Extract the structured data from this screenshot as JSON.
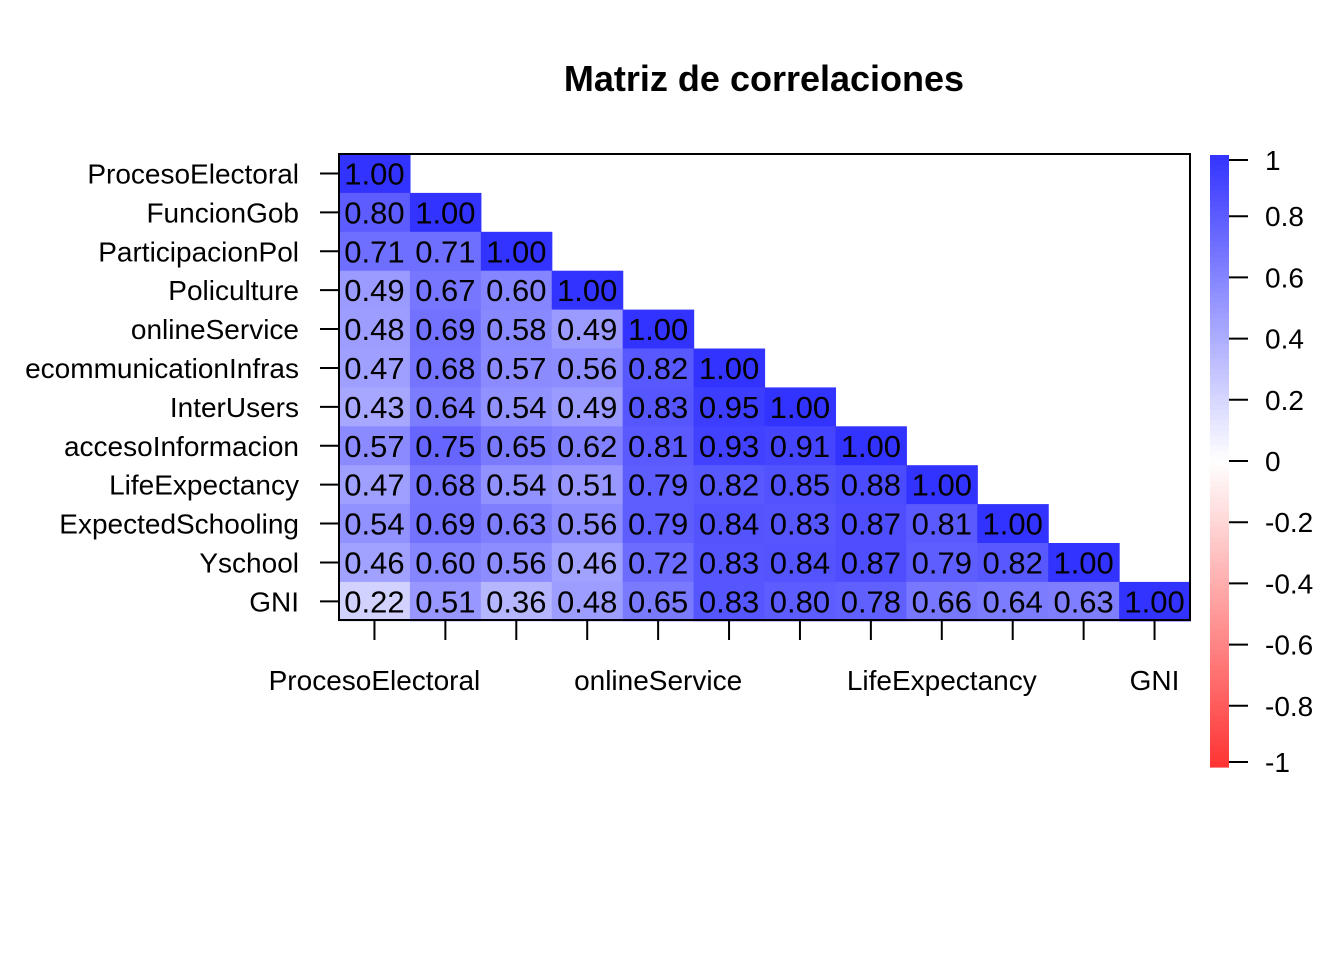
{
  "chart_data": {
    "type": "heatmap",
    "title": "Matriz de correlaciones",
    "variables": [
      "ProcesoElectoral",
      "FuncionGob",
      "ParticipacionPol",
      "Policulture",
      "onlineService",
      "TelecommunicationInfras",
      "InterUsers",
      "accesoInformacion",
      "LifeExpectancy",
      "ExpectedSchooling",
      "Yschool",
      "GNI"
    ],
    "row_labels": [
      "ProcesoElectoral",
      "FuncionGob",
      "ParticipacionPol",
      "Policulture",
      "onlineService",
      "ecommunicationInfras",
      "InterUsers",
      "accesoInformacion",
      "LifeExpectancy",
      "ExpectedSchooling",
      "Yschool",
      "GNI"
    ],
    "x_tick_labels": [
      {
        "index": 0,
        "label": "ProcesoElectoral"
      },
      {
        "index": 4,
        "label": "onlineService"
      },
      {
        "index": 8,
        "label": "LifeExpectancy"
      },
      {
        "index": 11,
        "label": "GNI"
      }
    ],
    "matrix_lower": [
      [
        1.0
      ],
      [
        0.8,
        1.0
      ],
      [
        0.71,
        0.71,
        1.0
      ],
      [
        0.49,
        0.67,
        0.6,
        1.0
      ],
      [
        0.48,
        0.69,
        0.58,
        0.49,
        1.0
      ],
      [
        0.47,
        0.68,
        0.57,
        0.56,
        0.82,
        1.0
      ],
      [
        0.43,
        0.64,
        0.54,
        0.49,
        0.83,
        0.95,
        1.0
      ],
      [
        0.57,
        0.75,
        0.65,
        0.62,
        0.81,
        0.93,
        0.91,
        1.0
      ],
      [
        0.47,
        0.68,
        0.54,
        0.51,
        0.79,
        0.82,
        0.85,
        0.88,
        1.0
      ],
      [
        0.54,
        0.69,
        0.63,
        0.56,
        0.79,
        0.84,
        0.83,
        0.87,
        0.81,
        1.0
      ],
      [
        0.46,
        0.6,
        0.56,
        0.46,
        0.72,
        0.83,
        0.84,
        0.87,
        0.79,
        0.82,
        1.0
      ],
      [
        0.22,
        0.51,
        0.36,
        0.48,
        0.65,
        0.83,
        0.8,
        0.78,
        0.66,
        0.64,
        0.63,
        1.0
      ]
    ],
    "colorbar": {
      "range": [
        -1,
        1
      ],
      "ticks": [
        "1",
        "0.8",
        "0.6",
        "0.4",
        "0.2",
        "0",
        "-0.2",
        "-0.4",
        "-0.6",
        "-0.8",
        "-1"
      ],
      "tick_values": [
        1,
        0.8,
        0.6,
        0.4,
        0.2,
        0,
        -0.2,
        -0.4,
        -0.6,
        -0.8,
        -1
      ],
      "color_high": "#3333ff",
      "color_mid": "#ffffff",
      "color_low": "#ff3333"
    },
    "grid": false,
    "legend": "right"
  }
}
